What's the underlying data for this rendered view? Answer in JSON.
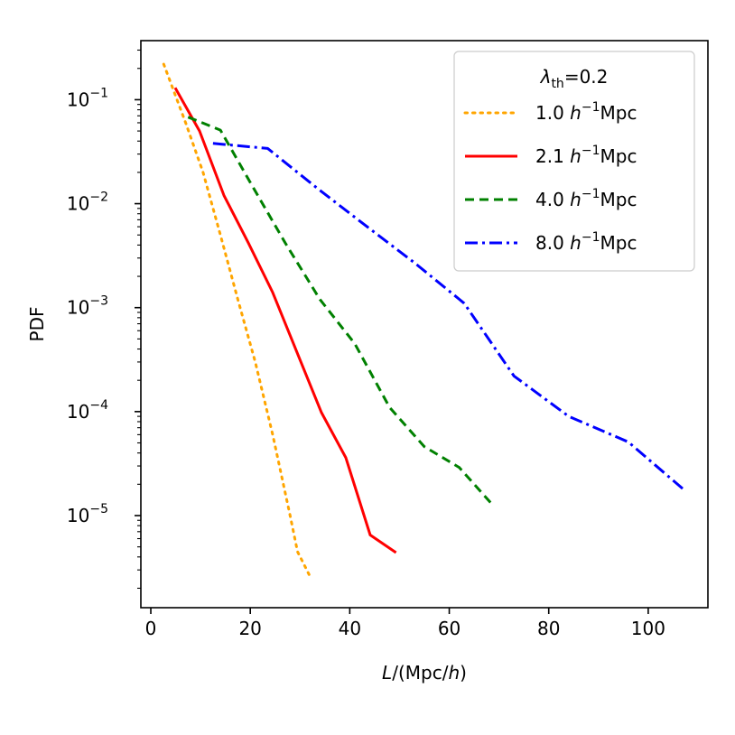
{
  "chart_data": {
    "type": "line",
    "xlabel_italic": "L",
    "xlabel_rest": "/(Mpc/",
    "xlabel_h": "h",
    "xlabel_close": ")",
    "ylabel": "PDF",
    "xlim": [
      -2,
      112
    ],
    "ylim": [
      1.3e-06,
      0.37
    ],
    "yscale": "log",
    "xticks": [
      0,
      20,
      40,
      60,
      80,
      100
    ],
    "yticks": [
      {
        "base": "10",
        "exp": "−1",
        "value": 0.1
      },
      {
        "base": "10",
        "exp": "−2",
        "value": 0.01
      },
      {
        "base": "10",
        "exp": "−3",
        "value": 0.001
      },
      {
        "base": "10",
        "exp": "−4",
        "value": 0.0001
      },
      {
        "base": "10",
        "exp": "−5",
        "value": 1e-05
      }
    ],
    "legend": {
      "title_symbol": "λ",
      "title_sub": "th",
      "title_value": "=0.2",
      "location": "upper right"
    },
    "series": [
      {
        "name_num": "1.0",
        "name_h": "h",
        "name_exp": "−1",
        "name_unit": "Mpc",
        "color": "#ffa500",
        "style": "dotted",
        "x": [
          2.6,
          7.0,
          10.5,
          14.0,
          17.5,
          21.0,
          24.5,
          28.0,
          29.5,
          32.0
        ],
        "y": [
          0.22,
          0.06,
          0.02,
          0.005,
          0.0012,
          0.0003,
          6e-05,
          1e-05,
          4.5e-06,
          2.6e-06
        ]
      },
      {
        "name_num": "2.1",
        "name_h": "h",
        "name_exp": "−1",
        "name_unit": "Mpc",
        "color": "#ff0000",
        "style": "solid",
        "x": [
          4.9,
          9.8,
          14.7,
          19.6,
          24.5,
          29.4,
          34.3,
          39.2,
          44.1,
          49.3
        ],
        "y": [
          0.13,
          0.05,
          0.012,
          0.0042,
          0.0014,
          0.00037,
          9.8e-05,
          3.6e-05,
          6.5e-06,
          4.4e-06
        ]
      },
      {
        "name_num": "4.0",
        "name_h": "h",
        "name_exp": "−1",
        "name_unit": "Mpc",
        "color": "#008000",
        "style": "dashed",
        "x": [
          7.5,
          14.0,
          20.0,
          27.0,
          34.0,
          41.0,
          48.0,
          55.0,
          62.0,
          68.5
        ],
        "y": [
          0.068,
          0.051,
          0.016,
          0.0042,
          0.0012,
          0.00045,
          0.00011,
          4.6e-05,
          2.9e-05,
          1.3e-05
        ]
      },
      {
        "name_num": "8.0",
        "name_h": "h",
        "name_exp": "−1",
        "name_unit": "Mpc",
        "color": "#0000ff",
        "style": "dashdot",
        "x": [
          12.5,
          23.5,
          33.5,
          43.5,
          53.0,
          63.0,
          73.0,
          84.0,
          96.0,
          107.0
        ],
        "y": [
          0.038,
          0.034,
          0.014,
          0.006,
          0.0027,
          0.0011,
          0.00022,
          9e-05,
          5.1e-05,
          1.8e-05
        ]
      }
    ]
  }
}
